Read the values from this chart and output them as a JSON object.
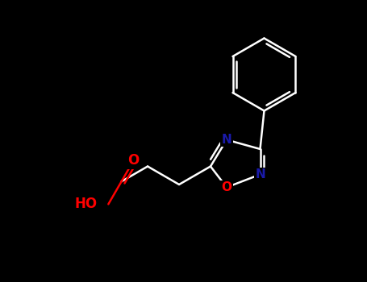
{
  "background_color": "#000000",
  "bond_color": "#ffffff",
  "atom_colors": {
    "O": "#ff0000",
    "N": "#1a1aaa",
    "C": "#ffffff",
    "H": "#ffffff"
  },
  "bond_width": 1.8,
  "figsize": [
    4.55,
    3.5
  ],
  "dpi": 100,
  "xlim": [
    0,
    9.1
  ],
  "ylim": [
    0,
    7.0
  ]
}
